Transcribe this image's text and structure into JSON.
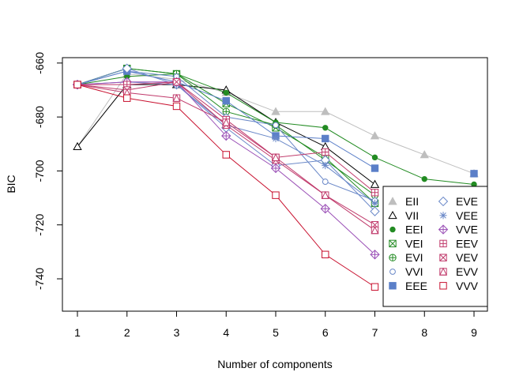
{
  "chart_data": {
    "type": "line",
    "title": "",
    "xlabel": "Number of components",
    "ylabel": "BIC",
    "x": [
      1,
      2,
      3,
      4,
      5,
      6,
      7,
      8,
      9
    ],
    "xlim": [
      1,
      9
    ],
    "ylim": [
      -752,
      -658
    ],
    "yticks": [
      -660,
      -680,
      -700,
      -720,
      -740
    ],
    "grid": false,
    "legend_position": "bottom-right",
    "series": [
      {
        "name": "EII",
        "color": "#bebebe",
        "marker": "triangle-filled",
        "values": [
          -691,
          -664,
          -666,
          -671,
          -678,
          -678,
          -687,
          -694,
          -701
        ]
      },
      {
        "name": "VII",
        "color": "#000000",
        "marker": "triangle-open",
        "values": [
          -691,
          -668,
          -668,
          -670,
          -682,
          -691,
          -705,
          null,
          null
        ]
      },
      {
        "name": "EEI",
        "color": "#228b22",
        "marker": "circle-filled",
        "values": [
          -668,
          -665,
          -664,
          -671,
          -682,
          -684,
          -695,
          -703,
          -705
        ]
      },
      {
        "name": "VEI",
        "color": "#228b22",
        "marker": "box-x",
        "values": [
          -668,
          -662,
          -664,
          -675,
          -684,
          -695,
          -712,
          null,
          null
        ]
      },
      {
        "name": "EVI",
        "color": "#228b22",
        "marker": "circle-plus",
        "values": [
          -668,
          -662,
          -664,
          -678,
          -683,
          -696,
          -709,
          null,
          null
        ]
      },
      {
        "name": "VVI",
        "color": "#6a88c8",
        "marker": "circle-open",
        "values": [
          -668,
          -663,
          -665,
          -680,
          -683,
          -704,
          -711,
          null,
          null
        ]
      },
      {
        "name": "EEE",
        "color": "#5b7fc8",
        "marker": "square-filled",
        "values": [
          -668,
          -663,
          -667,
          -674,
          -687,
          -688,
          -699,
          null,
          -701
        ]
      },
      {
        "name": "EVE",
        "color": "#6a88c8",
        "marker": "diamond-open",
        "values": [
          -668,
          -662,
          -668,
          -684,
          -698,
          -696,
          -715,
          null,
          null
        ]
      },
      {
        "name": "VEE",
        "color": "#6a88c8",
        "marker": "asterisk",
        "values": [
          -668,
          -667,
          -668,
          -683,
          -688,
          -698,
          -712,
          null,
          null
        ]
      },
      {
        "name": "VVE",
        "color": "#9a4fb6",
        "marker": "diamond-plus",
        "values": [
          -668,
          -667,
          -667,
          -687,
          -699,
          -714,
          -731,
          null,
          null
        ]
      },
      {
        "name": "EEV",
        "color": "#c03a6b",
        "marker": "square-plus",
        "values": [
          -668,
          -668,
          -667,
          -681,
          -695,
          -693,
          -708,
          null,
          null
        ]
      },
      {
        "name": "VEV",
        "color": "#c03a6b",
        "marker": "square-x",
        "values": [
          -668,
          -670,
          -667,
          -683,
          -696,
          -709,
          -720,
          null,
          null
        ]
      },
      {
        "name": "EVV",
        "color": "#c03a6b",
        "marker": "square-triangle",
        "values": [
          -668,
          -671,
          -673,
          -682,
          -695,
          -709,
          -722,
          null,
          null
        ]
      },
      {
        "name": "VVV",
        "color": "#c8102e",
        "marker": "square-open",
        "values": [
          -668,
          -673,
          -676,
          -694,
          -709,
          -731,
          -743,
          null,
          null
        ]
      }
    ]
  }
}
